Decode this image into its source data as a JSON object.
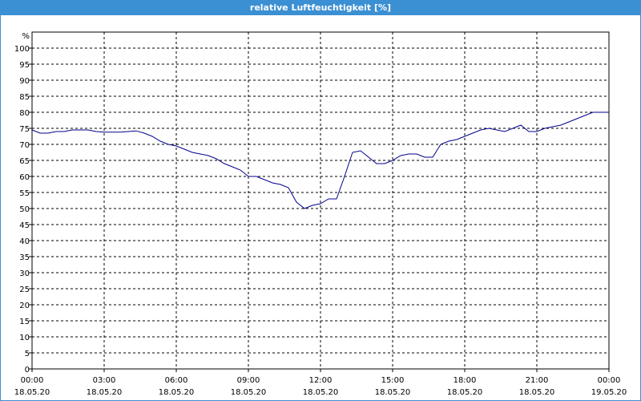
{
  "window": {
    "title": "relative Luftfeuchtigkeit [%]"
  },
  "chart_data": {
    "type": "line",
    "title": "relative Luftfeuchtigkeit [%]",
    "ylabel": "%",
    "xlabel": "",
    "ylim": [
      0,
      105
    ],
    "yticks": [
      0,
      5,
      10,
      15,
      20,
      25,
      30,
      35,
      40,
      45,
      50,
      55,
      60,
      65,
      70,
      75,
      80,
      85,
      90,
      95,
      100
    ],
    "grid": true,
    "xticks": [
      {
        "time": "00:00",
        "date": "18.05.20"
      },
      {
        "time": "03:00",
        "date": "18.05.20"
      },
      {
        "time": "06:00",
        "date": "18.05.20"
      },
      {
        "time": "09:00",
        "date": "18.05.20"
      },
      {
        "time": "12:00",
        "date": "18.05.20"
      },
      {
        "time": "15:00",
        "date": "18.05.20"
      },
      {
        "time": "18:00",
        "date": "18.05.20"
      },
      {
        "time": "21:00",
        "date": "18.05.20"
      },
      {
        "time": "00:00",
        "date": "19.05.20"
      }
    ],
    "line_color": "#00008b",
    "series": [
      {
        "x": [
          "00:00",
          "00:10",
          "00:20",
          "00:40",
          "01:00",
          "01:20",
          "01:40",
          "02:00",
          "02:20",
          "02:40",
          "03:00",
          "03:20",
          "03:40",
          "04:00",
          "04:20",
          "04:40",
          "05:00",
          "05:20",
          "05:40",
          "06:00",
          "06:20",
          "06:40",
          "07:00",
          "07:20",
          "07:40",
          "08:00",
          "08:20",
          "08:40",
          "09:00",
          "09:20",
          "09:40",
          "10:00",
          "10:20",
          "10:40",
          "11:00",
          "11:20",
          "11:40",
          "12:00",
          "12:20",
          "12:40",
          "13:00",
          "13:20",
          "13:40",
          "14:00",
          "14:20",
          "14:40",
          "15:00",
          "15:20",
          "15:40",
          "16:00",
          "16:20",
          "16:40",
          "17:00",
          "17:20",
          "17:40",
          "18:00",
          "18:20",
          "18:40",
          "19:00",
          "19:20",
          "19:40",
          "20:00",
          "20:20",
          "20:40",
          "21:00",
          "21:20",
          "21:40",
          "22:00",
          "22:20",
          "22:40",
          "23:00",
          "23:20",
          "23:40",
          "00:00"
        ],
        "values": [
          74.5,
          74,
          73.5,
          73.5,
          74,
          74,
          74.5,
          74.5,
          74.5,
          74,
          73.8,
          73.8,
          73.8,
          74,
          74.2,
          73.5,
          72.5,
          71,
          70,
          69.5,
          68.5,
          67.5,
          67,
          66.5,
          65.5,
          64,
          63,
          62,
          60,
          60,
          59,
          58,
          57.5,
          56.5,
          52,
          50,
          51,
          51.5,
          53,
          53,
          60,
          67.5,
          68,
          66,
          64,
          64,
          65,
          66.5,
          67,
          67,
          66,
          66,
          70,
          71,
          71.5,
          72.5,
          73.5,
          74.5,
          75,
          74.5,
          74,
          75,
          76,
          74,
          74,
          75,
          75.5,
          76,
          77,
          78,
          79,
          80,
          80,
          80
        ]
      }
    ]
  }
}
